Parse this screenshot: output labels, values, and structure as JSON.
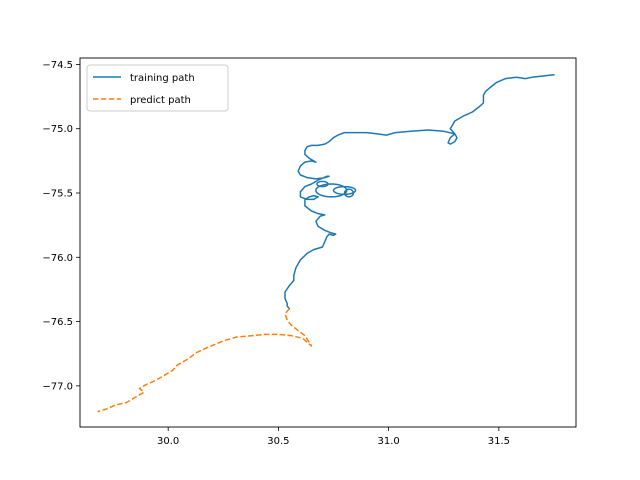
{
  "chart_data": {
    "type": "line",
    "title": "",
    "xlabel": "",
    "ylabel": "",
    "xlim": [
      29.6,
      31.85
    ],
    "ylim": [
      -77.32,
      -74.45
    ],
    "xticks": [
      30.0,
      30.5,
      31.0,
      31.5
    ],
    "xtick_labels": [
      "30.0",
      "30.5",
      "31.0",
      "31.5"
    ],
    "yticks": [
      -74.5,
      -75.0,
      -75.5,
      -76.0,
      -76.5,
      -77.0
    ],
    "ytick_labels": [
      "−74.5",
      "−75.0",
      "−75.5",
      "−76.0",
      "−76.5",
      "−77.0"
    ],
    "grid": false,
    "legend": "top-left",
    "series": [
      {
        "name": "training path",
        "color": "#1f77b4",
        "style": "solid",
        "points": [
          [
            31.75,
            -74.58
          ],
          [
            31.7,
            -74.59
          ],
          [
            31.65,
            -74.6
          ],
          [
            31.62,
            -74.61
          ],
          [
            31.58,
            -74.6
          ],
          [
            31.53,
            -74.61
          ],
          [
            31.49,
            -74.64
          ],
          [
            31.46,
            -74.68
          ],
          [
            31.44,
            -74.71
          ],
          [
            31.43,
            -74.74
          ],
          [
            31.43,
            -74.8
          ],
          [
            31.41,
            -74.83
          ],
          [
            31.38,
            -74.87
          ],
          [
            31.34,
            -74.9
          ],
          [
            31.3,
            -74.94
          ],
          [
            31.29,
            -74.97
          ],
          [
            31.28,
            -75.0
          ],
          [
            31.3,
            -75.04
          ],
          [
            31.31,
            -75.07
          ],
          [
            31.3,
            -75.1
          ],
          [
            31.28,
            -75.12
          ],
          [
            31.27,
            -75.11
          ],
          [
            31.28,
            -75.07
          ],
          [
            31.3,
            -75.04
          ],
          [
            31.25,
            -75.02
          ],
          [
            31.18,
            -75.01
          ],
          [
            31.1,
            -75.02
          ],
          [
            31.03,
            -75.03
          ],
          [
            30.99,
            -75.05
          ],
          [
            30.95,
            -75.04
          ],
          [
            30.9,
            -75.03
          ],
          [
            30.84,
            -75.03
          ],
          [
            30.8,
            -75.03
          ],
          [
            30.77,
            -75.05
          ],
          [
            30.75,
            -75.07
          ],
          [
            30.73,
            -75.1
          ],
          [
            30.71,
            -75.12
          ],
          [
            30.68,
            -75.13
          ],
          [
            30.65,
            -75.13
          ],
          [
            30.63,
            -75.14
          ],
          [
            30.62,
            -75.17
          ],
          [
            30.62,
            -75.2
          ],
          [
            30.64,
            -75.23
          ],
          [
            30.66,
            -75.25
          ],
          [
            30.67,
            -75.26
          ],
          [
            30.65,
            -75.25
          ],
          [
            30.62,
            -75.26
          ],
          [
            30.6,
            -75.29
          ],
          [
            30.59,
            -75.33
          ],
          [
            30.6,
            -75.36
          ],
          [
            30.63,
            -75.38
          ],
          [
            30.67,
            -75.39
          ],
          [
            30.71,
            -75.38
          ],
          [
            30.73,
            -75.37
          ],
          [
            30.72,
            -75.37
          ],
          [
            30.68,
            -75.4
          ],
          [
            30.65,
            -75.43
          ],
          [
            30.62,
            -75.45
          ],
          [
            30.6,
            -75.49
          ],
          [
            30.6,
            -75.53
          ],
          [
            30.63,
            -75.55
          ],
          [
            30.66,
            -75.55
          ],
          [
            30.68,
            -75.53
          ],
          [
            30.66,
            -75.52
          ],
          [
            30.64,
            -75.53
          ],
          [
            30.62,
            -75.55
          ],
          [
            30.62,
            -75.6
          ],
          [
            30.65,
            -75.64
          ],
          [
            30.68,
            -75.66
          ],
          [
            30.71,
            -75.67
          ],
          [
            30.69,
            -75.68
          ],
          [
            30.67,
            -75.72
          ],
          [
            30.68,
            -75.76
          ],
          [
            30.71,
            -75.79
          ],
          [
            30.74,
            -75.81
          ],
          [
            30.76,
            -75.82
          ],
          [
            30.75,
            -75.83
          ],
          [
            30.73,
            -75.82
          ],
          [
            30.72,
            -75.84
          ],
          [
            30.71,
            -75.88
          ],
          [
            30.7,
            -75.92
          ],
          [
            30.66,
            -75.94
          ],
          [
            30.63,
            -75.97
          ],
          [
            30.6,
            -76.02
          ],
          [
            30.58,
            -76.08
          ],
          [
            30.57,
            -76.14
          ],
          [
            30.57,
            -76.18
          ],
          [
            30.55,
            -76.22
          ],
          [
            30.53,
            -76.27
          ],
          [
            30.53,
            -76.32
          ],
          [
            30.54,
            -76.36
          ],
          [
            30.54,
            -76.38
          ],
          [
            30.55,
            -76.4
          ]
        ],
        "loops": [
          {
            "cx": 30.74,
            "cy": -75.48,
            "rx": 0.07,
            "ry": 0.05
          },
          {
            "cx": 30.8,
            "cy": -75.48,
            "rx": 0.05,
            "ry": 0.03
          },
          {
            "cx": 30.7,
            "cy": -75.43,
            "rx": 0.025,
            "ry": 0.02
          },
          {
            "cx": 30.82,
            "cy": -75.5,
            "rx": 0.02,
            "ry": 0.03
          }
        ]
      },
      {
        "name": "predict path",
        "color": "#ff7f0e",
        "style": "dashed",
        "points": [
          [
            30.55,
            -76.4
          ],
          [
            30.53,
            -76.44
          ],
          [
            30.54,
            -76.49
          ],
          [
            30.56,
            -76.53
          ],
          [
            30.59,
            -76.57
          ],
          [
            30.62,
            -76.61
          ],
          [
            30.65,
            -76.69
          ],
          [
            30.61,
            -76.63
          ],
          [
            30.56,
            -76.61
          ],
          [
            30.5,
            -76.6
          ],
          [
            30.44,
            -76.6
          ],
          [
            30.38,
            -76.61
          ],
          [
            30.31,
            -76.62
          ],
          [
            30.25,
            -76.65
          ],
          [
            30.18,
            -76.7
          ],
          [
            30.13,
            -76.74
          ],
          [
            30.09,
            -76.79
          ],
          [
            30.04,
            -76.84
          ],
          [
            30.02,
            -76.88
          ],
          [
            30.0,
            -76.9
          ],
          [
            29.97,
            -76.93
          ],
          [
            29.94,
            -76.96
          ],
          [
            29.9,
            -76.99
          ],
          [
            29.87,
            -77.02
          ],
          [
            29.89,
            -77.05
          ],
          [
            29.85,
            -77.09
          ],
          [
            29.81,
            -77.13
          ],
          [
            29.76,
            -77.15
          ],
          [
            29.72,
            -77.18
          ],
          [
            29.68,
            -77.2
          ]
        ]
      }
    ]
  }
}
